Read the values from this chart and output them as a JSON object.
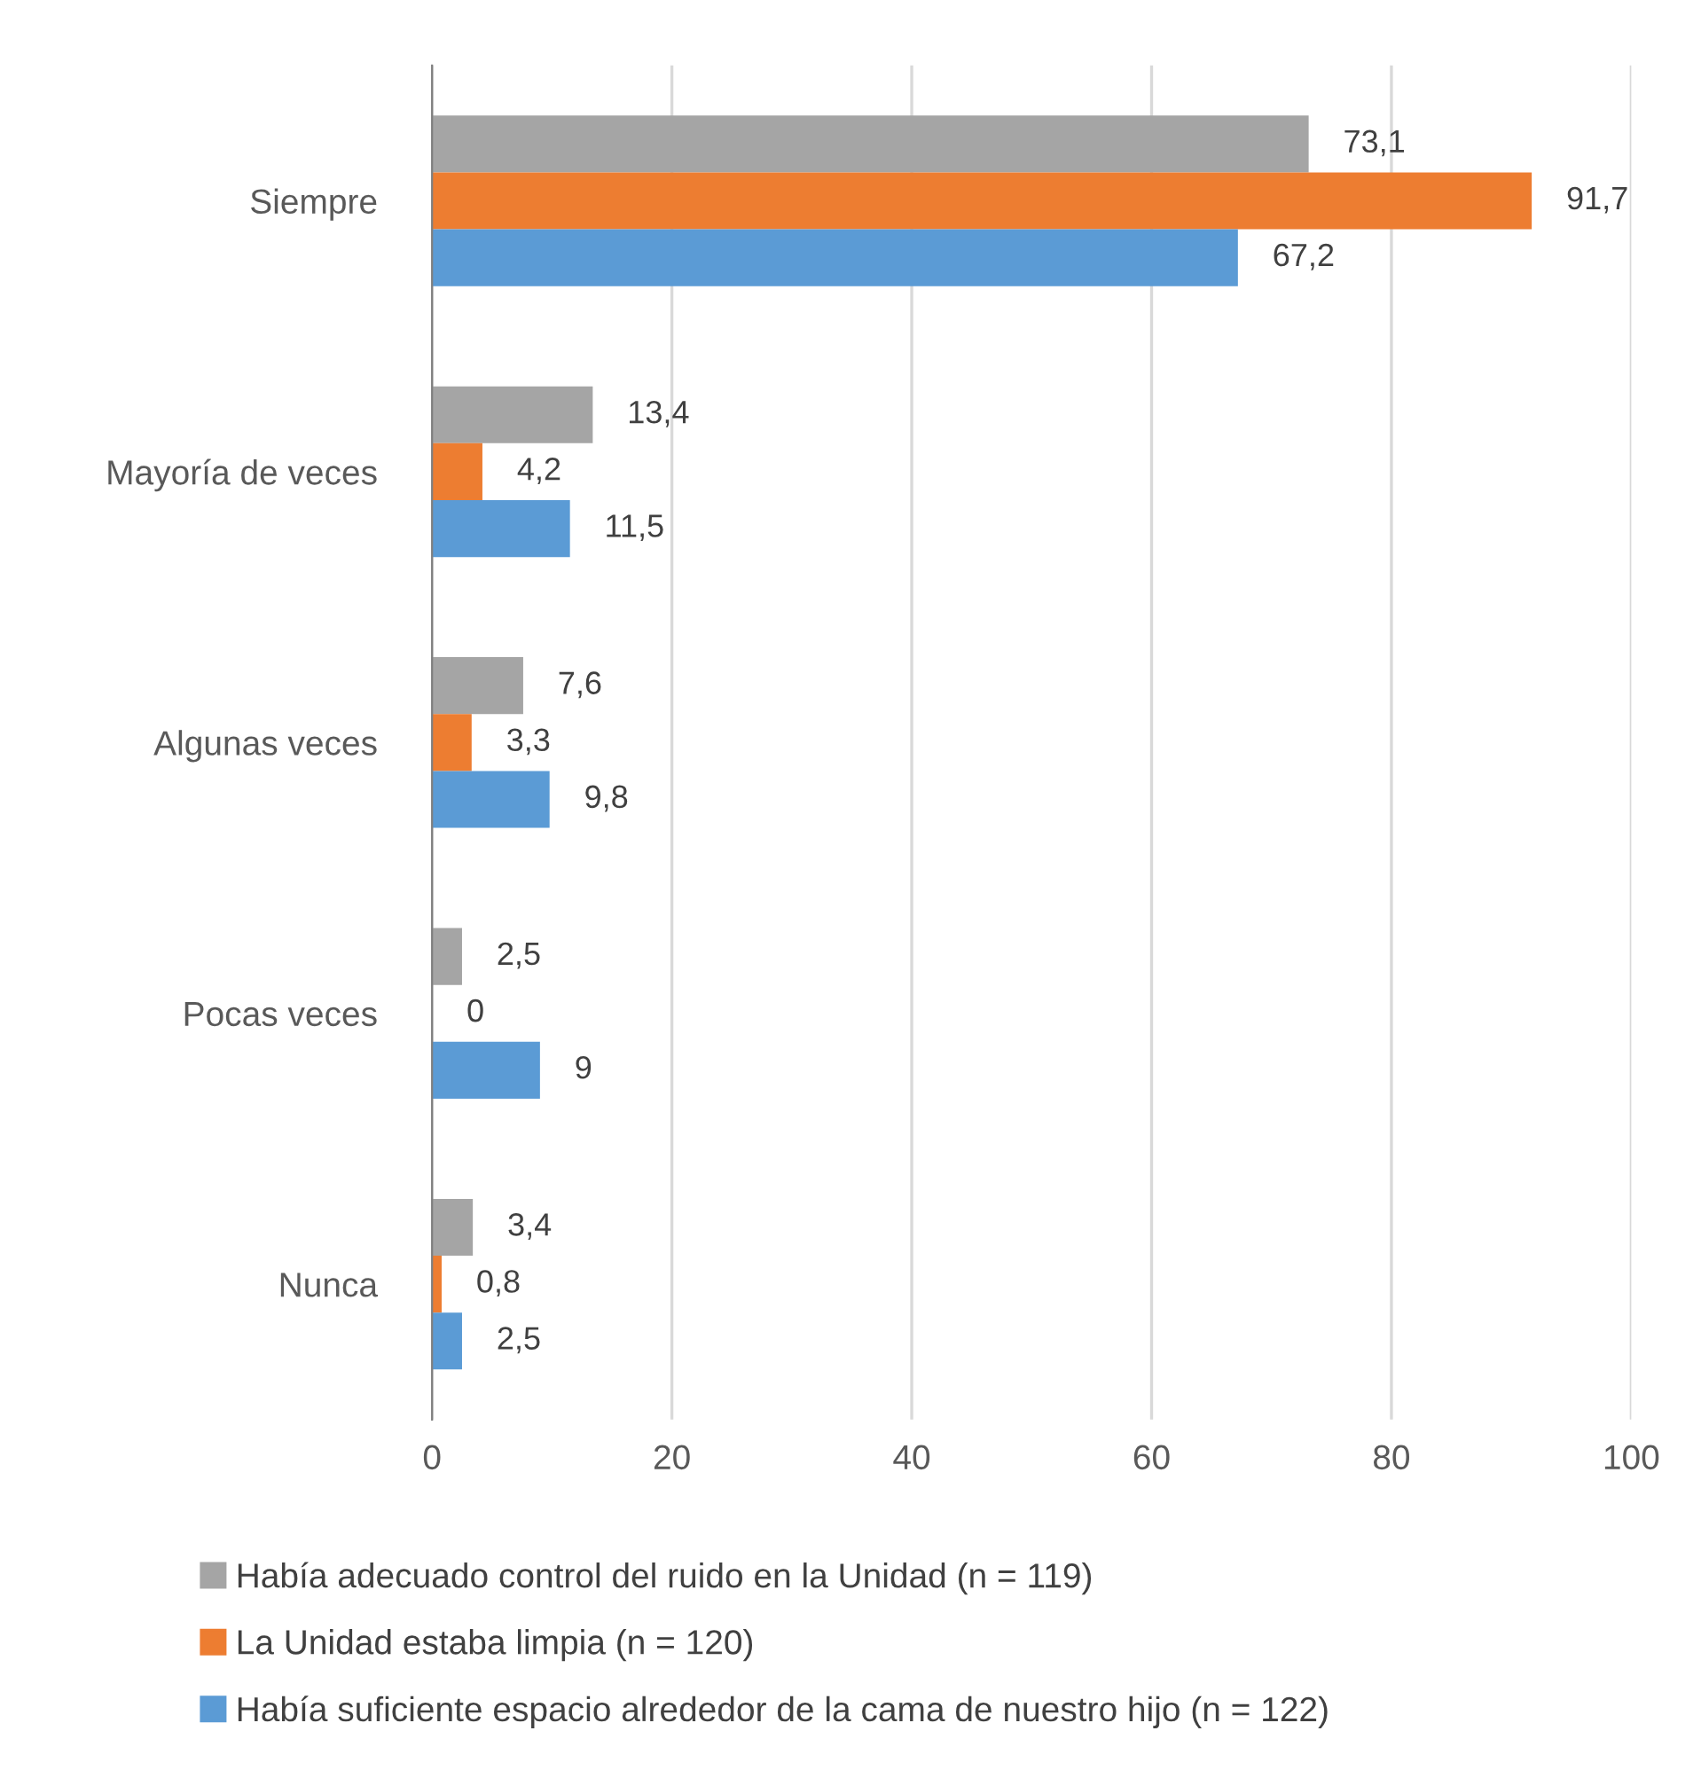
{
  "chart_data": {
    "type": "bar",
    "orientation": "horizontal",
    "categories": [
      "Siempre",
      "Mayoría de veces",
      "Algunas veces",
      "Pocas veces",
      "Nunca"
    ],
    "series": [
      {
        "name": "Había adecuado control del ruido en la Unidad (n = 119)",
        "color": "#a5a5a5",
        "values": [
          73.1,
          13.4,
          7.6,
          2.5,
          3.4
        ],
        "value_labels": [
          "73,1",
          "13,4",
          "7,6",
          "2,5",
          "3,4"
        ]
      },
      {
        "name": "La Unidad estaba limpia (n = 120)",
        "color": "#ed7d31",
        "values": [
          91.7,
          4.2,
          3.3,
          0,
          0.8
        ],
        "value_labels": [
          "91,7",
          "4,2",
          "3,3",
          "0",
          "0,8"
        ]
      },
      {
        "name": "Había suficiente espacio alrededor de la cama de nuestro hijo (n = 122)",
        "color": "#5b9bd5",
        "values": [
          67.2,
          11.5,
          9.8,
          9,
          2.5
        ],
        "value_labels": [
          "67,2",
          "11,5",
          "9,8",
          "9",
          "2,5"
        ]
      }
    ],
    "xlim": [
      0,
      100
    ],
    "xticks": [
      0,
      20,
      40,
      60,
      80,
      100
    ],
    "grid": "x",
    "legend": "bottom"
  }
}
